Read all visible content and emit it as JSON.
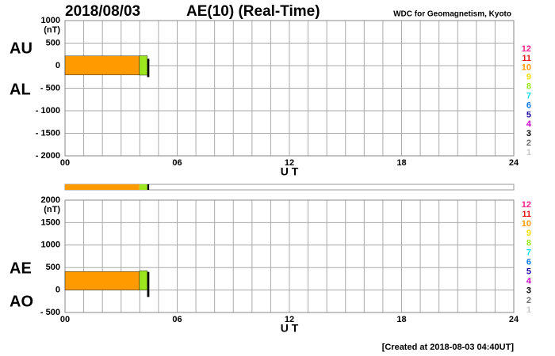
{
  "header": {
    "date": "2018/08/03",
    "title": "AE(10) (Real-Time)",
    "source": "WDC for Geomagnetism, Kyoto",
    "footer": "[Created at 2018-08-03 04:40UT]"
  },
  "legend": {
    "labels": [
      12,
      11,
      10,
      9,
      8,
      7,
      6,
      5,
      4,
      3,
      2,
      1
    ],
    "colors": [
      "#ff1e8c",
      "#e8141e",
      "#ff9a00",
      "#f0e000",
      "#9be61e",
      "#00dcf0",
      "#0a78e6",
      "#1e0aa0",
      "#c800c8",
      "#000000",
      "#6e6e6e",
      "#c8c8c8"
    ]
  },
  "chart_data": [
    {
      "type": "range",
      "upper_label": "AU",
      "lower_label": "AL",
      "unit": "(nT)",
      "xlabel": "U T",
      "xlim": [
        0,
        24
      ],
      "xticks": [
        {
          "value": 0,
          "label": "00"
        },
        {
          "value": 6,
          "label": "06"
        },
        12,
        18,
        24
      ],
      "ylim": [
        -2000,
        1000
      ],
      "yticks": [
        1000,
        500,
        0,
        {
          "value": -500,
          "label": "- 500"
        },
        {
          "value": -1000,
          "label": "- 1000"
        },
        {
          "value": -1500,
          "label": "- 1500"
        },
        {
          "value": -2000,
          "label": "- 2000"
        }
      ],
      "grid": true,
      "segments": [
        {
          "start": 0,
          "end": 3.98,
          "stations": 10,
          "upper": 215,
          "lower": -205
        },
        {
          "start": 3.98,
          "end": 4.4,
          "stations": 8,
          "upper": 220,
          "lower": -210
        },
        {
          "start": 4.4,
          "end": 4.5,
          "stations": 3,
          "upper": 150,
          "lower": -250
        }
      ]
    },
    {
      "type": "range",
      "upper_label": "AE",
      "lower_label": "AO",
      "unit": "(nT)",
      "xlabel": "U T",
      "xlim": [
        0,
        24
      ],
      "xticks": [
        {
          "value": 0,
          "label": "00"
        },
        {
          "value": 6,
          "label": "06"
        },
        12,
        18,
        24
      ],
      "ylim": [
        -500,
        2000
      ],
      "yticks": [
        2000,
        1500,
        1000,
        500,
        0,
        {
          "value": -500,
          "label": "- 500"
        }
      ],
      "grid": true,
      "segments": [
        {
          "start": 0,
          "end": 3.98,
          "stations": 10,
          "upper": 410,
          "lower": 0
        },
        {
          "start": 3.98,
          "end": 4.4,
          "stations": 8,
          "upper": 430,
          "lower": 0
        },
        {
          "start": 4.4,
          "end": 4.5,
          "stations": 3,
          "upper": 400,
          "lower": -150
        }
      ]
    }
  ]
}
